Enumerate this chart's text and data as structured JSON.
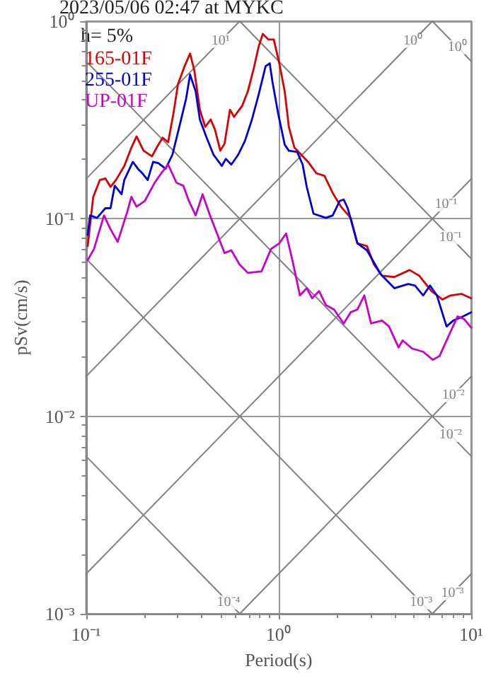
{
  "chart_data": {
    "type": "line",
    "title": "2023/05/06 02:47 at MYKC",
    "xlabel": "Period(s)",
    "ylabel": "pSv(cm/s)",
    "legend_title": "h= 5%",
    "legend": "top left",
    "log": "xy",
    "grid": true,
    "marker": "none",
    "line_style": "solid",
    "xlim": [
      0.1,
      10
    ],
    "ylim": [
      0.001,
      1
    ],
    "xticks": [
      {
        "value": 0.1,
        "label": "10⁻¹"
      },
      {
        "value": 1,
        "label": "10⁰"
      },
      {
        "value": 10,
        "label": "10¹"
      }
    ],
    "yticks": [
      {
        "value": 0.001,
        "label": "10⁻³"
      },
      {
        "value": 0.01,
        "label": "10⁻²"
      },
      {
        "value": 0.1,
        "label": "10⁻¹"
      },
      {
        "value": 1,
        "label": "10⁰"
      }
    ],
    "series": [
      {
        "color": "#808080",
        "x": [
          0.1,
          0.628
        ],
        "values": [
          0.159,
          1
        ]
      },
      {
        "color": "#808080",
        "x": [
          0.1,
          6.28
        ],
        "values": [
          0.0159,
          1
        ]
      },
      {
        "color": "#808080",
        "x": [
          0.1,
          10
        ],
        "values": [
          0.00159,
          0.159
        ]
      },
      {
        "color": "#808080",
        "x": [
          0.628,
          10
        ],
        "values": [
          0.001,
          0.0159
        ]
      },
      {
        "color": "#808080",
        "x": [
          6.28,
          10
        ],
        "values": [
          0.001,
          0.00159
        ]
      },
      {
        "color": "#808080",
        "x": [
          6.28,
          10
        ],
        "values": [
          1,
          0.628
        ]
      },
      {
        "color": "#808080",
        "x": [
          0.628,
          10
        ],
        "values": [
          1,
          0.0628
        ]
      },
      {
        "color": "#808080",
        "x": [
          0.1,
          10
        ],
        "values": [
          0.628,
          0.00628
        ]
      },
      {
        "color": "#808080",
        "x": [
          0.1,
          6.28
        ],
        "values": [
          0.0628,
          0.001
        ]
      },
      {
        "color": "#808080",
        "x": [
          0.1,
          0.628
        ],
        "values": [
          0.00628,
          0.001
        ]
      },
      {
        "name": "165-01F",
        "color": "#dd0000",
        "x": [
          0.102,
          0.109,
          0.118,
          0.126,
          0.134,
          0.143,
          0.158,
          0.172,
          0.183,
          0.199,
          0.22,
          0.235,
          0.25,
          0.267,
          0.285,
          0.3,
          0.325,
          0.347,
          0.365,
          0.39,
          0.416,
          0.444,
          0.467,
          0.498,
          0.524,
          0.559,
          0.587,
          0.648,
          0.692,
          0.739,
          0.788,
          0.828,
          0.884,
          0.944,
          1.008,
          1.076,
          1.13,
          1.208,
          1.31,
          1.422,
          1.57,
          1.73,
          1.91,
          2.109,
          2.366,
          2.565,
          2.877,
          3.126,
          3.443,
          3.991,
          4.786,
          5.37,
          6.218,
          7.096,
          7.816,
          8.913,
          10
        ],
        "values": [
          0.0727,
          0.129,
          0.157,
          0.16,
          0.145,
          0.157,
          0.185,
          0.229,
          0.261,
          0.221,
          0.207,
          0.233,
          0.257,
          0.244,
          0.345,
          0.478,
          0.592,
          0.686,
          0.564,
          0.356,
          0.292,
          0.318,
          0.283,
          0.221,
          0.24,
          0.356,
          0.328,
          0.374,
          0.441,
          0.564,
          0.745,
          0.863,
          0.808,
          0.808,
          0.612,
          0.441,
          0.292,
          0.229,
          0.211,
          0.194,
          0.17,
          0.165,
          0.135,
          0.115,
          0.101,
          0.0751,
          0.0727,
          0.0587,
          0.0515,
          0.0507,
          0.055,
          0.0515,
          0.043,
          0.039,
          0.0409,
          0.0416,
          0.0396
        ]
      },
      {
        "name": "255-01F",
        "color": "#0000dd",
        "x": [
          0.102,
          0.105,
          0.114,
          0.126,
          0.134,
          0.141,
          0.153,
          0.158,
          0.175,
          0.186,
          0.196,
          0.209,
          0.223,
          0.238,
          0.259,
          0.281,
          0.305,
          0.331,
          0.347,
          0.371,
          0.39,
          0.423,
          0.459,
          0.507,
          0.532,
          0.568,
          0.617,
          0.669,
          0.727,
          0.788,
          0.856,
          0.899,
          0.929,
          0.992,
          1.076,
          1.13,
          1.248,
          1.333,
          1.4,
          1.518,
          1.762,
          1.91,
          2.075,
          2.178,
          2.286,
          2.565,
          2.877,
          3.388,
          3.991,
          4.71,
          5.105,
          5.636,
          6.11,
          6.637,
          7.447,
          8.072,
          9.057,
          10
        ],
        "values": [
          0.0828,
          0.104,
          0.101,
          0.113,
          0.113,
          0.147,
          0.133,
          0.157,
          0.194,
          0.179,
          0.17,
          0.157,
          0.194,
          0.191,
          0.179,
          0.211,
          0.292,
          0.406,
          0.537,
          0.441,
          0.318,
          0.257,
          0.211,
          0.185,
          0.201,
          0.188,
          0.211,
          0.248,
          0.318,
          0.426,
          0.592,
          0.612,
          0.494,
          0.345,
          0.237,
          0.221,
          0.218,
          0.188,
          0.145,
          0.106,
          0.101,
          0.104,
          0.123,
          0.125,
          0.113,
          0.0751,
          0.0692,
          0.0524,
          0.0445,
          0.0467,
          0.0459,
          0.0409,
          0.0459,
          0.0409,
          0.0285,
          0.0305,
          0.032,
          0.0336
        ]
      },
      {
        "name": "UP-01F",
        "color": "#cc00cc",
        "x": [
          0.102,
          0.11,
          0.124,
          0.134,
          0.146,
          0.164,
          0.172,
          0.183,
          0.202,
          0.227,
          0.246,
          0.267,
          0.295,
          0.32,
          0.342,
          0.371,
          0.403,
          0.437,
          0.482,
          0.524,
          0.568,
          0.627,
          0.692,
          0.815,
          0.914,
          1.008,
          1.094,
          1.188,
          1.29,
          1.4,
          1.494,
          1.622,
          1.762,
          1.941,
          2.178,
          2.366,
          2.565,
          2.786,
          3.02,
          3.443,
          3.741,
          4.198,
          4.406,
          4.943,
          5.636,
          6.324,
          6.855,
          7.691,
          8.492,
          9.204,
          10
        ],
        "values": [
          0.0617,
          0.0703,
          0.104,
          0.0885,
          0.0763,
          0.109,
          0.129,
          0.115,
          0.123,
          0.152,
          0.17,
          0.188,
          0.152,
          0.147,
          0.123,
          0.104,
          0.133,
          0.106,
          0.0828,
          0.067,
          0.0692,
          0.0587,
          0.0532,
          0.0541,
          0.0703,
          0.0751,
          0.0842,
          0.0597,
          0.0409,
          0.0445,
          0.0396,
          0.043,
          0.0365,
          0.0347,
          0.0295,
          0.0336,
          0.0347,
          0.0409,
          0.0295,
          0.0305,
          0.0285,
          0.0223,
          0.0242,
          0.022,
          0.0212,
          0.0193,
          0.0202,
          0.0259,
          0.032,
          0.031,
          0.0281
        ]
      }
    ],
    "annotations": [
      {
        "text": "10¹",
        "x": 0.5,
        "y": 0.796
      },
      {
        "text": "10⁰",
        "x": 5,
        "y": 0.796
      },
      {
        "text": "10⁰",
        "x": 8.5,
        "y": 0.739
      },
      {
        "text": "10⁻¹",
        "x": 7.4,
        "y": 0.118
      },
      {
        "text": "10⁻¹",
        "x": 7.8,
        "y": 0.0805
      },
      {
        "text": "10⁻²",
        "x": 8.07,
        "y": 0.0128
      },
      {
        "text": "10⁻²",
        "x": 7.8,
        "y": 0.00805
      },
      {
        "text": "10⁻⁴",
        "x": 0.55,
        "y": 0.00114
      },
      {
        "text": "10⁻³",
        "x": 5.5,
        "y": 0.00114
      },
      {
        "text": "10⁻³",
        "x": 8,
        "y": 0.00127
      }
    ]
  }
}
